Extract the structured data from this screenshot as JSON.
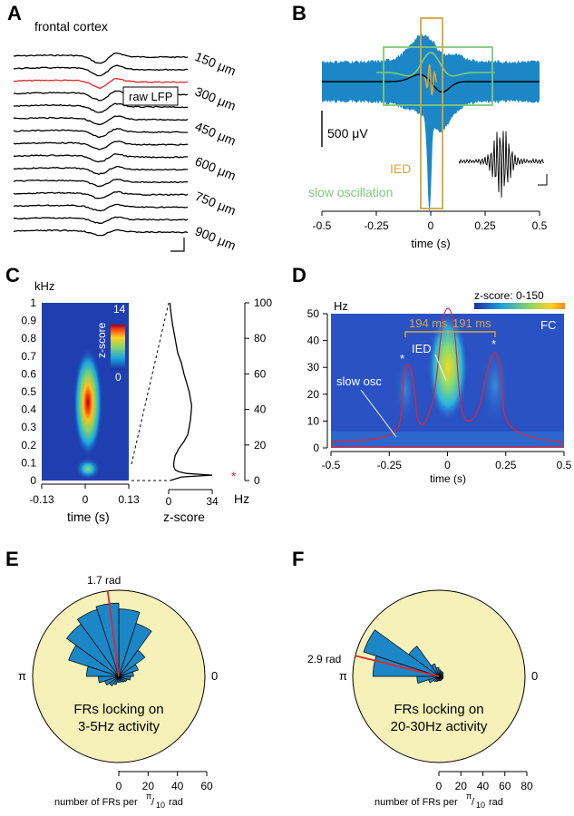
{
  "panels": {
    "A": {
      "letter": "A",
      "region": "frontal cortex",
      "inset_label": "raw LFP",
      "depth_labels": [
        "150 μm",
        "300 μm",
        "450 μm",
        "600 μm",
        "750 μm",
        "900 μm"
      ],
      "highlight_color": "#e8242a",
      "trace_count": 15,
      "highlight_index": 2
    },
    "B": {
      "letter": "B",
      "scale_label": "500 μV",
      "ied_label": "IED",
      "slow_label": "slow oscillation",
      "xlabel": "time (s)",
      "xticks": [
        "-0.5",
        "-0.25",
        "0",
        "0.25",
        "0.5"
      ],
      "colors": {
        "band": "#1b87c6",
        "ied": "#d4a640",
        "slow": "#7ec97a",
        "trace": "#000000"
      }
    },
    "C": {
      "letter": "C",
      "ylabel": "kHz",
      "yticks": [
        "0",
        "0.1",
        "0.2",
        "0.3",
        "0.4",
        "0.5",
        "0.6",
        "0.7",
        "0.8",
        "0.9",
        "1"
      ],
      "xticks": [
        "-0.13",
        "0",
        "0.13"
      ],
      "xlabel": "time (s)",
      "colorbar_label": "z-score",
      "colorbar_max": "14",
      "colorbar_min": "0",
      "profile_xticks": [
        "0",
        "34"
      ],
      "profile_xlabel": "z-score",
      "profile_yticks": [
        "0",
        "20",
        "40",
        "60",
        "80",
        "100"
      ],
      "profile_unit": "Hz",
      "peak_marker": "*"
    },
    "D": {
      "letter": "D",
      "ylabel": "Hz",
      "yticks": [
        "0",
        "10",
        "20",
        "30",
        "40",
        "50"
      ],
      "xticks": [
        "-0.5",
        "-0.25",
        "0",
        "0.25",
        "0.5"
      ],
      "xlabel": "time (s)",
      "colorbar_label": "z-score: 0-150",
      "fc_label": "FC",
      "ied_label": "IED",
      "slow_label": "slow osc",
      "interval1": "194 ms",
      "interval2": "191 ms",
      "star": "*"
    },
    "E": {
      "letter": "E",
      "angle_label": "1.7 rad",
      "pi_label": "π",
      "zero_label": "0",
      "caption_lines": [
        "FRs locking on",
        "3-5Hz activity"
      ],
      "xticks": [
        "0",
        "20",
        "40",
        "60"
      ],
      "axis_label": "number of FRs per",
      "axis_frac_num": "π",
      "axis_frac_den": "10",
      "axis_unit": "rad"
    },
    "F": {
      "letter": "F",
      "angle_label": "2.9 rad",
      "pi_label": "π",
      "zero_label": "0",
      "caption_lines": [
        "FRs locking on",
        "20-30Hz activity"
      ],
      "xticks": [
        "0",
        "20",
        "40",
        "60",
        "80"
      ],
      "axis_label": "number of FRs per",
      "axis_frac_num": "π",
      "axis_frac_den": "10",
      "axis_unit": "rad"
    }
  },
  "chart_data": [
    {
      "type": "line",
      "panel": "A",
      "title": "frontal cortex",
      "series_count": 15,
      "y_labels": [
        "150 μm",
        "300 μm",
        "450 μm",
        "600 μm",
        "750 μm",
        "900 μm"
      ]
    },
    {
      "type": "line",
      "panel": "B",
      "xlabel": "time (s)",
      "xlim": [
        -0.5,
        0.5
      ],
      "x_ticks": [
        -0.5,
        -0.25,
        0,
        0.25,
        0.5
      ],
      "annotations": [
        "IED",
        "slow oscillation",
        "500 μV"
      ],
      "ied_window_s": [
        -0.03,
        0.03
      ],
      "slow_osc_window_s": [
        -0.25,
        0.3
      ]
    },
    {
      "type": "heatmap",
      "panel": "C",
      "xlabel": "time (s)",
      "ylabel": "kHz",
      "xlim": [
        -0.13,
        0.13
      ],
      "ylim": [
        0,
        1
      ],
      "colorbar": {
        "label": "z-score",
        "min": 0,
        "max": 14
      },
      "hotspots": [
        {
          "time_s": 0.02,
          "freq_khz": 0.45,
          "z": 14
        },
        {
          "time_s": 0.02,
          "freq_khz": 0.07,
          "z": 6
        }
      ]
    },
    {
      "type": "line",
      "panel": "C-profile",
      "xlabel": "z-score",
      "ylabel": "Hz",
      "xlim": [
        0,
        34
      ],
      "ylim": [
        0,
        100
      ],
      "y": [
        0,
        2,
        3,
        4,
        5,
        6,
        8,
        10,
        14,
        18,
        22,
        26,
        30,
        34,
        38,
        42,
        46,
        50,
        55,
        60,
        66,
        72,
        80,
        88,
        96,
        100
      ],
      "x": [
        1,
        10,
        34,
        14,
        8,
        5,
        4,
        4,
        5,
        8,
        12,
        15,
        16,
        17,
        17.5,
        18,
        17,
        16,
        14,
        12,
        10,
        7,
        5,
        3,
        1.5,
        1
      ],
      "peak_hz": 4
    },
    {
      "type": "heatmap",
      "panel": "D",
      "xlabel": "time (s)",
      "ylabel": "Hz",
      "xlim": [
        -0.5,
        0.5
      ],
      "ylim": [
        0,
        50
      ],
      "colorbar": {
        "label": "z-score: 0-150",
        "min": 0,
        "max": 150
      },
      "annotations": [
        "IED",
        "slow osc",
        "FC",
        "194 ms",
        "191 ms"
      ],
      "hotspots": [
        {
          "time_s": -0.19,
          "freq_hz": 28
        },
        {
          "time_s": 0.0,
          "freq_hz": 22
        },
        {
          "time_s": 0.2,
          "freq_hz": 28
        }
      ]
    },
    {
      "type": "bar",
      "subtype": "polar",
      "panel": "E",
      "title": "FRs locking on 3-5Hz activity",
      "bin_width_rad": 0.314159,
      "categories_rad": [
        0.157,
        0.471,
        0.785,
        1.1,
        1.414,
        1.728,
        2.042,
        2.356,
        2.67,
        2.985,
        3.299,
        3.613,
        3.927,
        4.241,
        4.555,
        4.869,
        5.184,
        5.498,
        5.812,
        6.126
      ],
      "values": [
        10,
        14,
        22,
        38,
        46,
        50,
        48,
        44,
        36,
        22,
        14,
        10,
        8,
        6,
        4,
        4,
        4,
        5,
        6,
        8
      ],
      "mean_angle_rad": 1.7,
      "xlim": [
        0,
        60
      ]
    },
    {
      "type": "bar",
      "subtype": "polar",
      "panel": "F",
      "title": "FRs locking on 20-30Hz activity",
      "bin_width_rad": 0.314159,
      "categories_rad": [
        0.157,
        0.471,
        0.785,
        1.1,
        1.414,
        1.728,
        2.042,
        2.356,
        2.67,
        2.985,
        3.299,
        3.613,
        3.927,
        4.241,
        4.555,
        4.869,
        5.184,
        5.498,
        5.812,
        6.126
      ],
      "values": [
        4,
        4,
        5,
        5,
        6,
        8,
        12,
        34,
        72,
        60,
        20,
        10,
        6,
        5,
        4,
        4,
        4,
        4,
        4,
        4
      ],
      "mean_angle_rad": 2.9,
      "xlim": [
        0,
        80
      ]
    }
  ]
}
